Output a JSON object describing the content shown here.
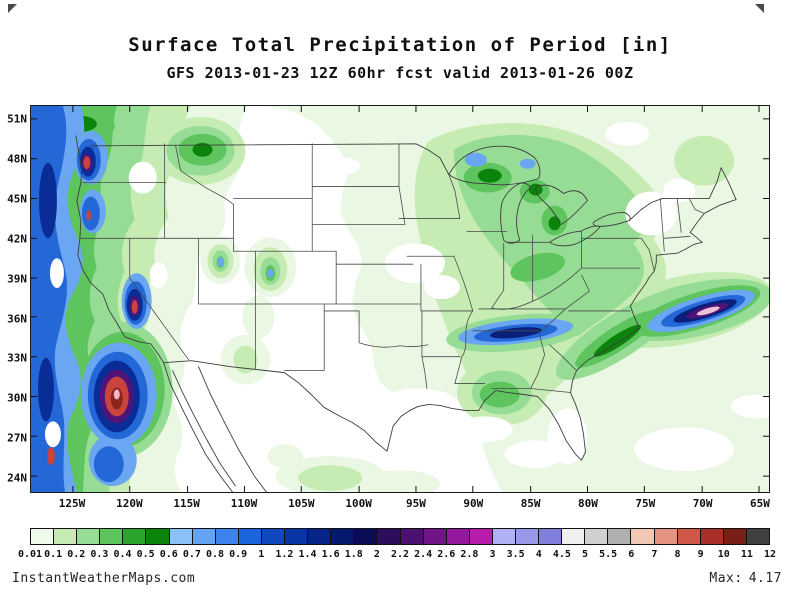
{
  "header": {
    "title": "Surface Total Precipitation of Period [in]",
    "subtitle": "GFS 2013-01-23 12Z 60hr fcst valid 2013-01-26 00Z"
  },
  "map": {
    "lat_labels": [
      "51N",
      "48N",
      "45N",
      "42N",
      "39N",
      "36N",
      "33N",
      "30N",
      "27N",
      "24N"
    ],
    "lon_labels": [
      "125W",
      "120W",
      "115W",
      "110W",
      "105W",
      "100W",
      "95W",
      "90W",
      "85W",
      "80W",
      "75W",
      "70W",
      "65W"
    ]
  },
  "colorbar": {
    "unit": "in",
    "tick_labels": [
      "0.01",
      "0.1",
      "0.2",
      "0.3",
      "0.4",
      "0.5",
      "0.6",
      "0.7",
      "0.8",
      "0.9",
      "1",
      "1.2",
      "1.4",
      "1.6",
      "1.8",
      "2",
      "2.2",
      "2.4",
      "2.6",
      "2.8",
      "3",
      "3.5",
      "4",
      "4.5",
      "5",
      "5.5",
      "6",
      "7",
      "8",
      "9",
      "10",
      "11",
      "12"
    ],
    "cell_colors": [
      "#eefaea",
      "#c6ecb4",
      "#96dc94",
      "#5ec45e",
      "#2ca42c",
      "#0c840c",
      "#8cc0f8",
      "#64a4f4",
      "#3c84ec",
      "#1c64dc",
      "#1048c0",
      "#0834a4",
      "#042488",
      "#04186c",
      "#0c0c54",
      "#2c0c5c",
      "#4c1070",
      "#701488",
      "#94189c",
      "#b81cac",
      "#b0b0f4",
      "#9898e8",
      "#8080dc",
      "#f0f0f0",
      "#d0d0d0",
      "#b0b0b0",
      "#f0c8b4",
      "#e49480",
      "#d05848",
      "#a83028",
      "#782018",
      "#404040"
    ]
  },
  "footer": {
    "site": "InstantWeatherMaps.com",
    "max_label": "Max:",
    "max_value": "4.17"
  },
  "chart_data": {
    "type": "heatmap",
    "title": "Surface Total Precipitation of Period [in]",
    "model": "GFS",
    "init": "2013-01-23 12Z",
    "forecast_hour": "60hr",
    "valid": "2013-01-26 00Z",
    "lat_ticks": [
      "51N",
      "48N",
      "45N",
      "42N",
      "39N",
      "36N",
      "33N",
      "30N",
      "27N",
      "24N"
    ],
    "lon_ticks": [
      "125W",
      "120W",
      "115W",
      "110W",
      "105W",
      "100W",
      "95W",
      "90W",
      "85W",
      "80W",
      "75W",
      "70W",
      "65W"
    ],
    "scale_levels_in": [
      0.01,
      0.1,
      0.2,
      0.3,
      0.4,
      0.5,
      0.6,
      0.7,
      0.8,
      0.9,
      1,
      1.2,
      1.4,
      1.6,
      1.8,
      2,
      2.2,
      2.4,
      2.6,
      2.8,
      3,
      3.5,
      4,
      4.5,
      5,
      5.5,
      6,
      7,
      8,
      9,
      10,
      11,
      12
    ],
    "max_value_in": 4.17,
    "notable_maxima": [
      "Pacific Northwest coast and Cascades",
      "Sierra Nevada / Southern California offshore (heaviest, near max)",
      "Tennessee Valley banded maximum",
      "Western Atlantic coastal storm band near 36N 70W"
    ]
  }
}
